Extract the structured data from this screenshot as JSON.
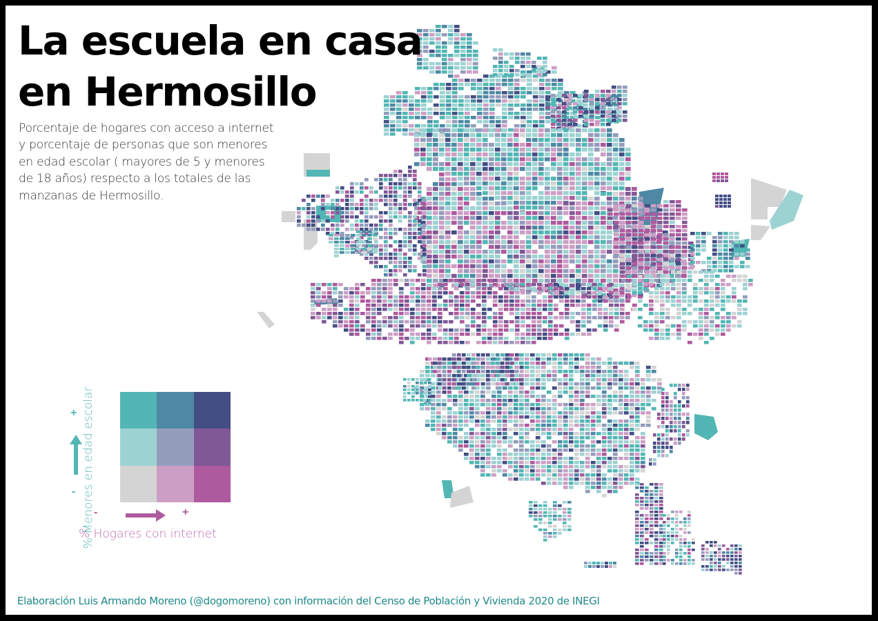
{
  "title": {
    "line1": "La escuela en casa",
    "line2": "en Hermosillo"
  },
  "subtitle": {
    "lines": [
      "Porcentaje de hogares con acceso a internet",
      "y porcentaje de personas que son menores",
      "en edad escolar ( mayores de 5 y menores",
      "de 18 años) respecto a los totales de las",
      "manzanas de Hermosillo."
    ]
  },
  "legend": {
    "y_axis_label": "% Menores en edad escolar",
    "x_axis_label": "% Hogares con internet",
    "y_high": "+",
    "y_low": "-",
    "x_low": "-",
    "x_high": "+",
    "y_color": "#52b6b4",
    "x_color": "#ae5a9e",
    "bivariate_colors": [
      [
        "#52b6b4",
        "#4e88a4",
        "#434e84"
      ],
      [
        "#9dd2d3",
        "#949cbc",
        "#7f5895"
      ],
      [
        "#d4d4d4",
        "#cc9ec5",
        "#ae5a9e"
      ]
    ]
  },
  "map": {
    "city": "Hermosillo",
    "unit": "manzanas",
    "no_data_color": "#d4d4d4"
  },
  "footer": {
    "credit": "Elaboración Luis Armando Moreno (@dogomoreno) con información del Censo de Población y Vivienda 2020 de INEGI"
  }
}
